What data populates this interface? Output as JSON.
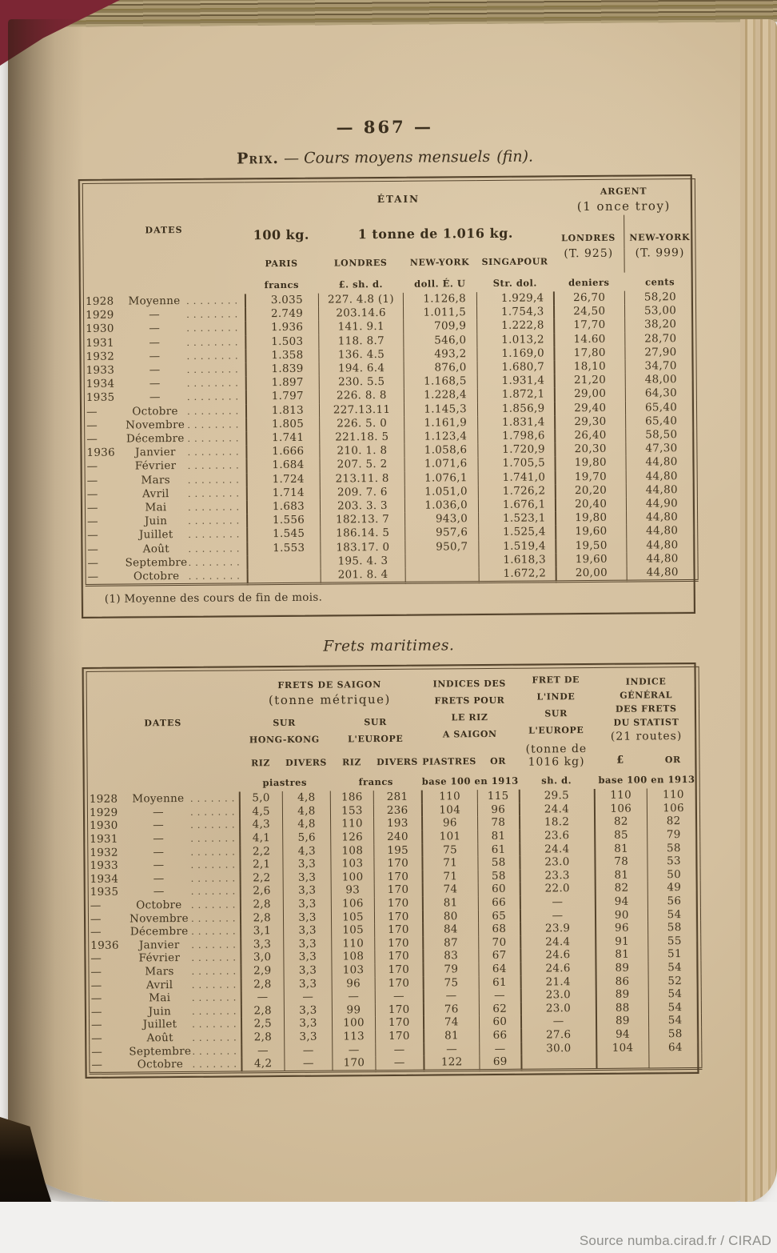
{
  "page": {
    "number": "— 867 —",
    "source": "Source numba.cirad.fr / CIRAD"
  },
  "table1": {
    "title": {
      "smallcaps": "Prix.",
      "dash": "—",
      "italic": "Cours moyens mensuels",
      "paren": "(fin)."
    },
    "header": {
      "dates": "DATES",
      "etain": "ÉTAIN",
      "argent1": "ARGENT",
      "argent2": "(1 once troy)",
      "kg100": "100 kg.",
      "tonne": "1 tonne de 1.016 kg.",
      "paris": "PARIS",
      "londres": "LONDRES",
      "newyork": "NEW-YORK",
      "singapour": "SINGAPOUR",
      "arg_londres1": "LONDRES",
      "arg_londres2": "(T. 925)",
      "arg_newyork1": "NEW-YORK",
      "arg_newyork2": "(T. 999)",
      "units": [
        "francs",
        "£. sh. d.",
        "doll. É. U",
        "Str. dol.",
        "deniers",
        "cents"
      ]
    },
    "rows": [
      {
        "year": "1928",
        "label": "Moyenne",
        "cells": [
          "3.035",
          "227. 4.8 (1)",
          "1.126,8",
          "1.929,4",
          "26,70",
          "58,20"
        ]
      },
      {
        "year": "1929",
        "label": "—",
        "cells": [
          "2.749",
          "203.14.6",
          "1.011,5",
          "1.754,3",
          "24,50",
          "53,00"
        ]
      },
      {
        "year": "1930",
        "label": "—",
        "cells": [
          "1.936",
          "141. 9.1",
          "709,9",
          "1.222,8",
          "17,70",
          "38,20"
        ]
      },
      {
        "year": "1931",
        "label": "—",
        "cells": [
          "1.503",
          "118. 8.7",
          "546,0",
          "1.013,2",
          "14.60",
          "28,70"
        ]
      },
      {
        "year": "1932",
        "label": "—",
        "cells": [
          "1.358",
          "136. 4.5",
          "493,2",
          "1.169,0",
          "17,80",
          "27,90"
        ]
      },
      {
        "year": "1933",
        "label": "—",
        "cells": [
          "1.839",
          "194. 6.4",
          "876,0",
          "1.680,7",
          "18,10",
          "34,70"
        ]
      },
      {
        "year": "1934",
        "label": "—",
        "cells": [
          "1.897",
          "230. 5.5",
          "1.168,5",
          "1.931,4",
          "21,20",
          "48,00"
        ]
      },
      {
        "year": "1935",
        "label": "—",
        "cells": [
          "1.797",
          "226. 8. 8",
          "1.228,4",
          "1.872,1",
          "29,00",
          "64,30"
        ]
      },
      {
        "year": "—",
        "label": "Octobre",
        "cells": [
          "1.813",
          "227.13.11",
          "1.145,3",
          "1.856,9",
          "29,40",
          "65,40"
        ]
      },
      {
        "year": "—",
        "label": "Novembre",
        "cells": [
          "1.805",
          "226. 5. 0",
          "1.161,9",
          "1.831,4",
          "29,30",
          "65,40"
        ]
      },
      {
        "year": "—",
        "label": "Décembre",
        "cells": [
          "1.741",
          "221.18. 5",
          "1.123,4",
          "1.798,6",
          "26,40",
          "58,50"
        ]
      },
      {
        "year": "1936",
        "label": "Janvier",
        "cells": [
          "1.666",
          "210. 1. 8",
          "1.058,6",
          "1.720,9",
          "20,30",
          "47,30"
        ]
      },
      {
        "year": "—",
        "label": "Février",
        "cells": [
          "1.684",
          "207. 5. 2",
          "1.071,6",
          "1.705,5",
          "19,80",
          "44,80"
        ]
      },
      {
        "year": "—",
        "label": "Mars",
        "cells": [
          "1.724",
          "213.11. 8",
          "1.076,1",
          "1.741,0",
          "19,70",
          "44,80"
        ]
      },
      {
        "year": "—",
        "label": "Avril",
        "cells": [
          "1.714",
          "209. 7. 6",
          "1.051,0",
          "1.726,2",
          "20,20",
          "44,80"
        ]
      },
      {
        "year": "—",
        "label": "Mai",
        "cells": [
          "1.683",
          "203. 3. 3",
          "1.036,0",
          "1.676,1",
          "20,40",
          "44,90"
        ]
      },
      {
        "year": "—",
        "label": "Juin",
        "cells": [
          "1.556",
          "182.13. 7",
          "943,0",
          "1.523,1",
          "19,80",
          "44,80"
        ]
      },
      {
        "year": "—",
        "label": "Juillet",
        "cells": [
          "1.545",
          "186.14. 5",
          "957,6",
          "1.525,4",
          "19,60",
          "44,80"
        ]
      },
      {
        "year": "—",
        "label": "Août",
        "cells": [
          "1.553",
          "183.17. 0",
          "950,7",
          "1.519,4",
          "19,50",
          "44,80"
        ]
      },
      {
        "year": "—",
        "label": "Septembre",
        "cells": [
          "",
          "195. 4. 3",
          "",
          "1.618,3",
          "19,60",
          "44,80"
        ]
      },
      {
        "year": "—",
        "label": "Octobre",
        "cells": [
          "",
          "201. 8. 4",
          "",
          "1.672,2",
          "20,00",
          "44,80"
        ]
      }
    ],
    "footnote": "(1) Moyenne des cours de fin de mois."
  },
  "table2": {
    "title": "Frets maritimes.",
    "header": {
      "dates": "DATES",
      "saigon1": "FRETS DE SAIGON",
      "saigon2": "(tonne métrique)",
      "hongkong": "SUR\nHONG-KONG",
      "europe": "SUR\nL'EUROPE",
      "riz": "RIZ",
      "divers": "DIVERS",
      "indices": "INDICES DES\nFRETS POUR\nLE RIZ\nA SAIGON",
      "piastres": "PIASTRES",
      "or": "OR",
      "fret1": "FRET DE\nL'INDE\nSUR\nL'EUROPE",
      "fret2": "(tonne de\n1016 kg)",
      "indgen1": "INDICE\nGÉNÉRAL\nDES FRETS\nDU STATIST",
      "indgen2": "(21 routes)",
      "pound": "£",
      "units_piastres": "piastres",
      "units_francs": "francs",
      "units_base": "base 100 en 1913",
      "units_sh": "sh. d.",
      "units_base2": "base 100 en 1913"
    },
    "rows": [
      {
        "year": "1928",
        "label": "Moyenne",
        "cells": [
          "5,0",
          "4,8",
          "186",
          "281",
          "110",
          "115",
          "29.5",
          "110",
          "110"
        ]
      },
      {
        "year": "1929",
        "label": "—",
        "cells": [
          "4,5",
          "4,8",
          "153",
          "236",
          "104",
          "96",
          "24.4",
          "106",
          "106"
        ]
      },
      {
        "year": "1930",
        "label": "—",
        "cells": [
          "4,3",
          "4,8",
          "110",
          "193",
          "96",
          "78",
          "18.2",
          "82",
          "82"
        ]
      },
      {
        "year": "1931",
        "label": "—",
        "cells": [
          "4,1",
          "5,6",
          "126",
          "240",
          "101",
          "81",
          "23.6",
          "85",
          "79"
        ]
      },
      {
        "year": "1932",
        "label": "—",
        "cells": [
          "2,2",
          "4,3",
          "108",
          "195",
          "75",
          "61",
          "24.4",
          "81",
          "58"
        ]
      },
      {
        "year": "1933",
        "label": "—",
        "cells": [
          "2,1",
          "3,3",
          "103",
          "170",
          "71",
          "58",
          "23.0",
          "78",
          "53"
        ]
      },
      {
        "year": "1934",
        "label": "—",
        "cells": [
          "2,2",
          "3,3",
          "100",
          "170",
          "71",
          "58",
          "23.3",
          "81",
          "50"
        ]
      },
      {
        "year": "1935",
        "label": "—",
        "cells": [
          "2,6",
          "3,3",
          "93",
          "170",
          "74",
          "60",
          "22.0",
          "82",
          "49"
        ]
      },
      {
        "year": "—",
        "label": "Octobre",
        "cells": [
          "2,8",
          "3,3",
          "106",
          "170",
          "81",
          "66",
          "—",
          "94",
          "56"
        ]
      },
      {
        "year": "—",
        "label": "Novembre",
        "cells": [
          "2,8",
          "3,3",
          "105",
          "170",
          "80",
          "65",
          "—",
          "90",
          "54"
        ]
      },
      {
        "year": "—",
        "label": "Décembre",
        "cells": [
          "3,1",
          "3,3",
          "105",
          "170",
          "84",
          "68",
          "23.9",
          "96",
          "58"
        ]
      },
      {
        "year": "1936",
        "label": "Janvier",
        "cells": [
          "3,3",
          "3,3",
          "110",
          "170",
          "87",
          "70",
          "24.4",
          "91",
          "55"
        ]
      },
      {
        "year": "—",
        "label": "Février",
        "cells": [
          "3,0",
          "3,3",
          "108",
          "170",
          "83",
          "67",
          "24.6",
          "81",
          "51"
        ]
      },
      {
        "year": "—",
        "label": "Mars",
        "cells": [
          "2,9",
          "3,3",
          "103",
          "170",
          "79",
          "64",
          "24.6",
          "89",
          "54"
        ]
      },
      {
        "year": "—",
        "label": "Avril",
        "cells": [
          "2,8",
          "3,3",
          "96",
          "170",
          "75",
          "61",
          "21.4",
          "86",
          "52"
        ]
      },
      {
        "year": "—",
        "label": "Mai",
        "cells": [
          "—",
          "—",
          "—",
          "—",
          "—",
          "—",
          "23.0",
          "89",
          "54"
        ]
      },
      {
        "year": "—",
        "label": "Juin",
        "cells": [
          "2,8",
          "3,3",
          "99",
          "170",
          "76",
          "62",
          "23.0",
          "88",
          "54"
        ]
      },
      {
        "year": "—",
        "label": "Juillet",
        "cells": [
          "2,5",
          "3,3",
          "100",
          "170",
          "74",
          "60",
          "—",
          "89",
          "54"
        ]
      },
      {
        "year": "—",
        "label": "Août",
        "cells": [
          "2,8",
          "3,3",
          "113",
          "170",
          "81",
          "66",
          "27.6",
          "94",
          "58"
        ]
      },
      {
        "year": "—",
        "label": "Septembre",
        "cells": [
          "—",
          "—",
          "—",
          "—",
          "—",
          "—",
          "30.0",
          "104",
          "64"
        ]
      },
      {
        "year": "—",
        "label": "Octobre",
        "cells": [
          "4,2",
          "—",
          "170",
          "—",
          "122",
          "69",
          "",
          "",
          ""
        ]
      }
    ]
  }
}
